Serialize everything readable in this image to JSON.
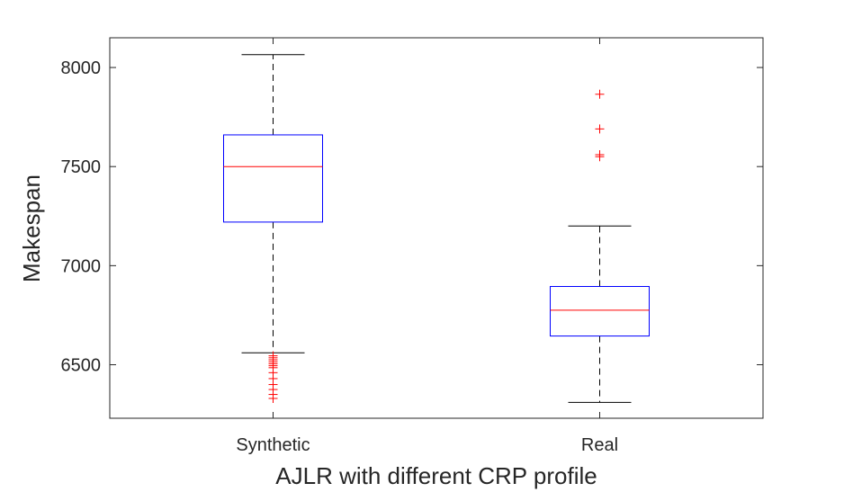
{
  "chart_data": {
    "type": "box",
    "title": "",
    "xlabel": "AJLR with different CRP profile",
    "ylabel": "Makespan",
    "ylim": [
      6230,
      8150
    ],
    "yticks": [
      6500,
      7000,
      7500,
      8000
    ],
    "grid": false,
    "categories": [
      "Synthetic",
      "Real"
    ],
    "boxes": [
      {
        "category": "Synthetic",
        "whisker_low": 6560,
        "q1": 7220,
        "median": 7500,
        "q3": 7660,
        "whisker_high": 8065,
        "outliers": [
          6545,
          6535,
          6525,
          6515,
          6505,
          6495,
          6485,
          6460,
          6430,
          6400,
          6375,
          6350,
          6330
        ]
      },
      {
        "category": "Real",
        "whisker_low": 6310,
        "q1": 6645,
        "median": 6775,
        "q3": 6895,
        "whisker_high": 7200,
        "outliers": [
          7550,
          7560,
          7690,
          7865
        ]
      }
    ],
    "colors": {
      "box": "#0000ff",
      "median": "#ff0000",
      "whisker": "#000000",
      "outlier": "#ff0000",
      "axis": "#262626"
    }
  }
}
